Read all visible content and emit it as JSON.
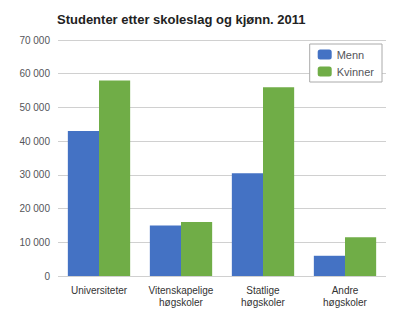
{
  "chart_data": {
    "type": "bar",
    "title": "Studenter etter skoleslag og kjønn. 2011",
    "categories": [
      "Universiteter",
      "Vitenskapelige\nhøgskoler",
      "Statlige\nhøgskoler",
      "Andre\nhøgskoler"
    ],
    "series": [
      {
        "name": "Menn",
        "color": "#4472c4",
        "values": [
          43000,
          15000,
          30500,
          6000
        ]
      },
      {
        "name": "Kvinner",
        "color": "#70ad47",
        "values": [
          58000,
          16000,
          56000,
          11500
        ]
      }
    ],
    "ylim": [
      0,
      70000
    ],
    "yticks": [
      0,
      {
        "value": 10000,
        "label": "10 000"
      },
      {
        "value": 20000,
        "label": "20 000"
      },
      {
        "value": 30000,
        "label": "30 000"
      },
      {
        "value": 40000,
        "label": "40 000"
      },
      {
        "value": 50000,
        "label": "50 000"
      },
      {
        "value": 60000,
        "label": "60 000"
      },
      {
        "value": 70000,
        "label": "70 000"
      }
    ],
    "grid": true,
    "legend": "upper right"
  }
}
